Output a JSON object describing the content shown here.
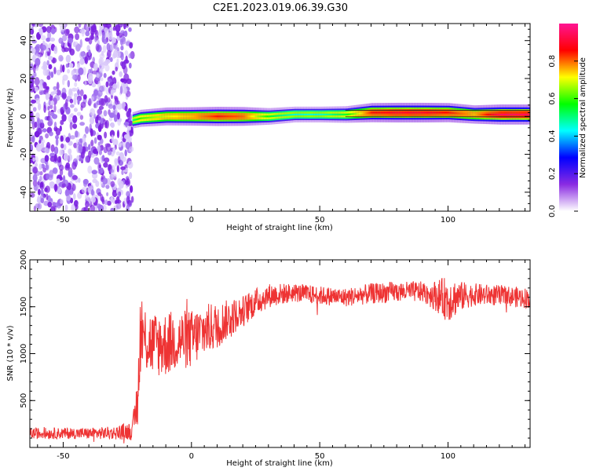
{
  "title": "C2E1.2023.019.06.39.G30",
  "chart_data": [
    {
      "type": "heatmap",
      "xlabel": "Height of straight line (km)",
      "ylabel": "Frequency (Hz)",
      "xlim": [
        -63,
        132
      ],
      "ylim": [
        -50,
        49
      ],
      "xticks": [
        -50,
        0,
        50,
        100
      ],
      "yticks": [
        -40,
        -20,
        0,
        20,
        40
      ],
      "colorbar": {
        "label": "Normalized spectral amplitude",
        "range": [
          0,
          1
        ],
        "ticks": [
          "0.0",
          "0.2",
          "0.4",
          "0.6",
          "0.8"
        ],
        "colormap": [
          "#ffffff",
          "#8a2be2",
          "#0000ff",
          "#00ffff",
          "#00ff00",
          "#ffff00",
          "#ff0000",
          "#ff1493"
        ]
      },
      "noise_region_x": [
        -63,
        -23
      ],
      "signal_track": {
        "x": [
          -23,
          -20,
          -10,
          0,
          10,
          20,
          30,
          40,
          50,
          60,
          70,
          80,
          90,
          100,
          110,
          120,
          132
        ],
        "freq_hz": [
          -2,
          -1,
          0,
          0,
          0,
          0,
          0,
          1,
          1,
          1,
          2,
          2,
          2,
          2,
          1,
          1,
          1
        ],
        "amplitude": [
          0.5,
          0.6,
          0.7,
          0.75,
          0.85,
          0.8,
          0.55,
          0.45,
          0.45,
          0.55,
          0.85,
          0.9,
          0.9,
          0.85,
          0.75,
          0.95,
          0.95
        ]
      }
    },
    {
      "type": "line",
      "xlabel": "Height of straight line (km)",
      "ylabel": "SNR (10 * v/v)",
      "xlim": [
        -63,
        132
      ],
      "ylim": [
        0,
        2000
      ],
      "xticks": [
        -50,
        0,
        50,
        100
      ],
      "yticks": [
        500,
        1000,
        1500,
        2000
      ],
      "color": "#ee3333",
      "envelope": {
        "x": [
          -63,
          -50,
          -40,
          -30,
          -23,
          -21,
          -20,
          -15,
          -10,
          -5,
          0,
          5,
          10,
          15,
          20,
          25,
          30,
          40,
          50,
          60,
          70,
          80,
          90,
          95,
          100,
          105,
          110,
          120,
          132
        ],
        "mean": [
          150,
          150,
          150,
          155,
          180,
          500,
          1200,
          1100,
          1100,
          1150,
          1150,
          1250,
          1300,
          1380,
          1450,
          1550,
          1620,
          1650,
          1620,
          1600,
          1640,
          1660,
          1660,
          1620,
          1580,
          1610,
          1630,
          1620,
          1590
        ],
        "amp": [
          60,
          60,
          60,
          70,
          100,
          300,
          400,
          350,
          350,
          320,
          320,
          280,
          250,
          200,
          170,
          150,
          130,
          100,
          100,
          100,
          110,
          110,
          110,
          160,
          250,
          160,
          120,
          110,
          110
        ]
      }
    }
  ]
}
